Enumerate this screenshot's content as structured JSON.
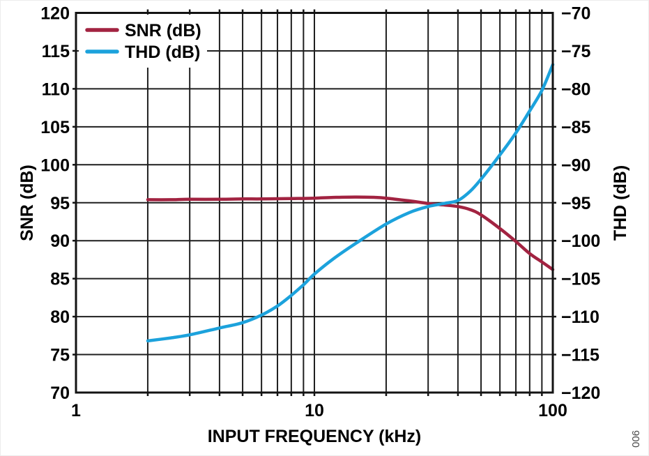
{
  "figure": {
    "code": "006",
    "background": "#ffffff"
  },
  "colors": {
    "frame": "#131313",
    "grid": "#1f1f1f",
    "tick": "#131313",
    "text": "#000000",
    "fig_code": "#4a4a4a",
    "legend_background": "#ffffff",
    "snr_curve": "#A22341",
    "thd_curve": "#1CA2DC"
  },
  "chart_data": {
    "type": "line",
    "title": "",
    "xlabel": "INPUT FREQUENCY (kHz)",
    "x_scale": "log",
    "xlim": [
      1,
      100
    ],
    "x_tick_labels": [
      {
        "value": 1,
        "label": "1"
      },
      {
        "value": 10,
        "label": "10"
      },
      {
        "value": 100,
        "label": "100"
      }
    ],
    "x_gridlines": [
      2,
      3,
      4,
      5,
      6,
      7,
      8,
      9,
      10,
      20,
      30,
      40,
      50,
      60,
      70,
      80,
      90
    ],
    "left_axis": {
      "label": "SNR (dB)",
      "min": 70,
      "max": 120,
      "step": 5
    },
    "right_axis": {
      "label": "THD (dB)",
      "min": -120,
      "max": -70,
      "step": 5
    },
    "grid": true,
    "legend": {
      "position": "top-left",
      "entries": [
        {
          "label": "SNR (dB)",
          "color": "#A22341"
        },
        {
          "label": "THD (dB)",
          "color": "#1CA2DC"
        }
      ]
    },
    "series": [
      {
        "name": "SNR (dB)",
        "axis": "left",
        "color": "#A22341",
        "x": [
          2,
          2.5,
          3,
          4,
          5,
          6,
          8,
          10,
          12,
          15,
          18,
          20,
          25,
          30,
          35,
          40,
          45,
          50,
          60,
          70,
          80,
          90,
          100
        ],
        "y": [
          95.4,
          95.4,
          95.45,
          95.45,
          95.5,
          95.5,
          95.55,
          95.6,
          95.7,
          95.75,
          95.7,
          95.6,
          95.25,
          94.9,
          94.7,
          94.5,
          94.1,
          93.4,
          91.6,
          89.9,
          88.3,
          87.2,
          86.2
        ]
      },
      {
        "name": "THD (dB)",
        "axis": "right",
        "color": "#1CA2DC",
        "x": [
          2,
          2.5,
          3,
          4,
          5,
          6,
          7,
          8,
          9,
          10,
          12,
          15,
          20,
          25,
          30,
          35,
          40,
          45,
          50,
          60,
          70,
          80,
          90,
          100
        ],
        "y": [
          -113.2,
          -112.8,
          -112.4,
          -111.5,
          -110.8,
          -109.8,
          -108.6,
          -107.2,
          -105.8,
          -104.4,
          -102.4,
          -100.3,
          -97.8,
          -96.3,
          -95.5,
          -95.1,
          -94.7,
          -93.5,
          -91.9,
          -88.7,
          -85.8,
          -82.9,
          -80.2,
          -76.8
        ]
      }
    ]
  }
}
